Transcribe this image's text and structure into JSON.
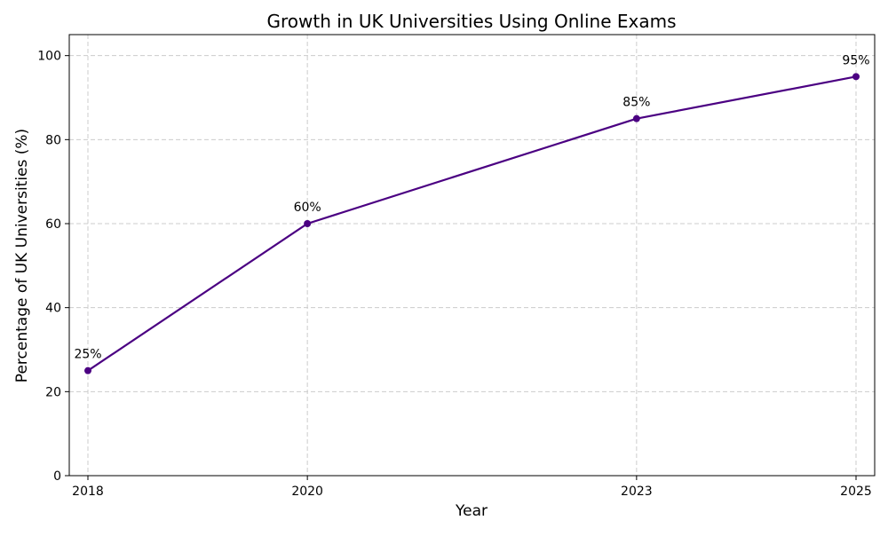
{
  "chart_data": {
    "type": "line",
    "title": "Growth in UK Universities Using Online Exams",
    "xlabel": "Year",
    "ylabel": "Percentage of UK Universities (%)",
    "x": [
      2018,
      2020,
      2023,
      2025
    ],
    "x_tick_labels": [
      "2018",
      "2020",
      "2023",
      "2025"
    ],
    "y_ticks": [
      0,
      20,
      40,
      60,
      80,
      100
    ],
    "y_tick_labels": [
      "0",
      "20",
      "40",
      "60",
      "80",
      "100"
    ],
    "ylim": [
      0,
      105
    ],
    "xlim": [
      2017.83,
      2025.17
    ],
    "grid": true,
    "series": [
      {
        "values": [
          25,
          60,
          85,
          95
        ],
        "data_labels": [
          "25%",
          "60%",
          "85%",
          "95%"
        ],
        "color": "#4b0082",
        "marker": "circle"
      }
    ]
  }
}
